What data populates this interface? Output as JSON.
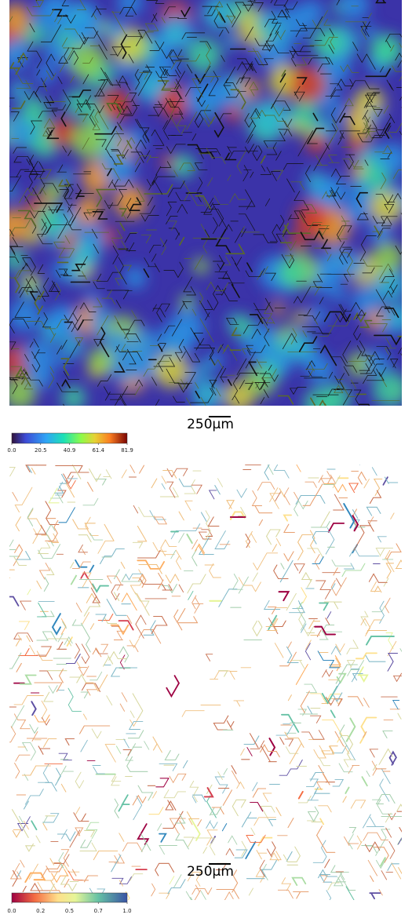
{
  "panels": [
    {
      "scale_label": "250μm",
      "colorbar": {
        "ticks": [
          "0.0",
          "20.5",
          "40.9",
          "61.4",
          "81.9"
        ]
      }
    },
    {
      "scale_label": "250μm",
      "colorbar": {
        "ticks": [
          "0.0",
          "0.2",
          "0.5",
          "0.7",
          "1.0"
        ]
      }
    }
  ]
}
